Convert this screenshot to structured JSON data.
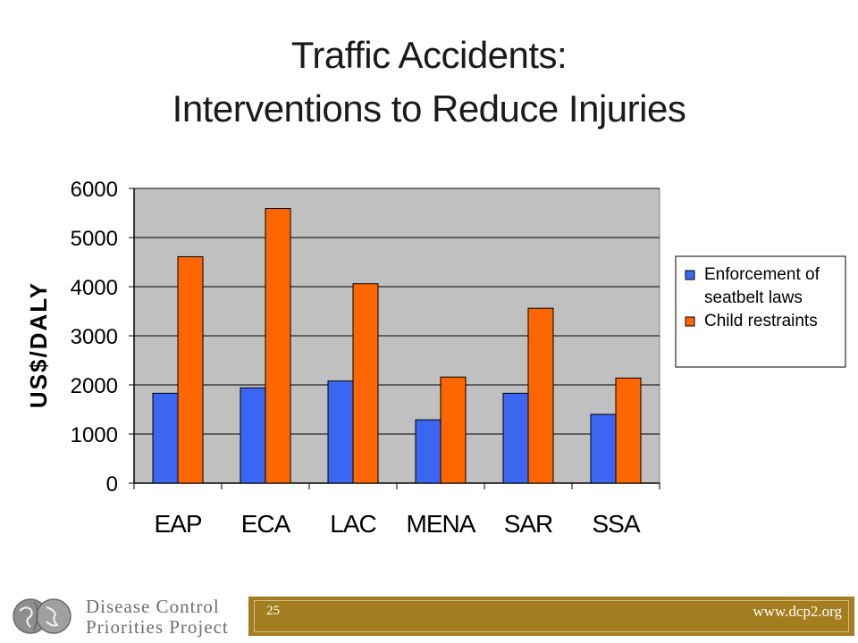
{
  "slide": {
    "title_line1": "Traffic Accidents:",
    "title_line2": "Interventions to Reduce Injuries"
  },
  "chart_data": {
    "type": "bar",
    "title": "",
    "xlabel": "",
    "ylabel": "US$/DALY",
    "categories": [
      "EAP",
      "ECA",
      "LAC",
      "MENA",
      "SAR",
      "SSA"
    ],
    "series": [
      {
        "name": "Enforcement of seatbelt laws",
        "legend_lines": [
          "Enforcement of",
          "seatbelt laws"
        ],
        "color": "#3a66f2",
        "values": [
          1830,
          1940,
          2080,
          1290,
          1830,
          1400
        ]
      },
      {
        "name": "Child restraints",
        "legend_lines": [
          "Child restraints"
        ],
        "color": "#ff6600",
        "values": [
          4610,
          5590,
          4060,
          2160,
          3560,
          2140
        ]
      }
    ],
    "ylim": [
      0,
      6000
    ],
    "yticks": [
      0,
      1000,
      2000,
      3000,
      4000,
      5000,
      6000
    ],
    "grid": true,
    "legend_position": "right",
    "plot_background": "#c0c0c0"
  },
  "footer": {
    "logo_line1": "Disease Control",
    "logo_line2": "Priorities Project",
    "page_number": "25",
    "url": "www.dcp2.org",
    "bar_color": "#a47d20"
  }
}
